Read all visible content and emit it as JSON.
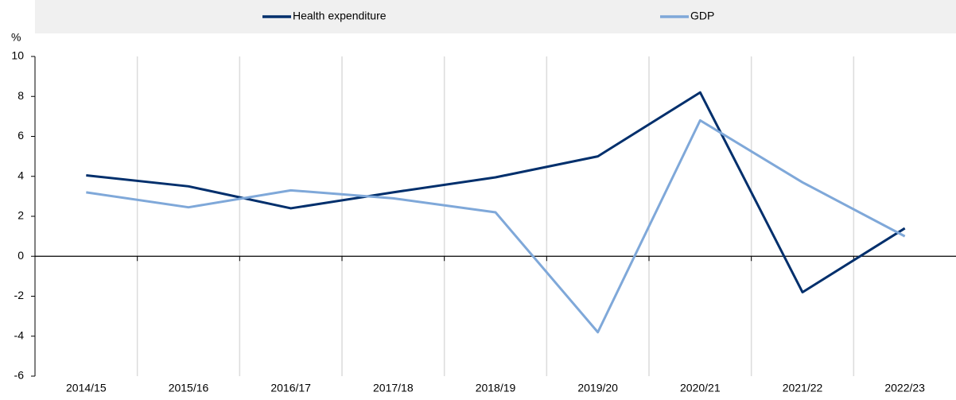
{
  "chart_data": {
    "type": "line",
    "y_label": "%",
    "categories": [
      "2014/15",
      "2015/16",
      "2016/17",
      "2017/18",
      "2018/19",
      "2019/20",
      "2020/21",
      "2021/22",
      "2022/23"
    ],
    "series": [
      {
        "name": "Health expenditure",
        "color": "#002f6c",
        "values": [
          4.05,
          3.5,
          2.4,
          3.2,
          3.95,
          5.0,
          8.2,
          -1.8,
          1.4
        ]
      },
      {
        "name": "GDP",
        "color": "#7fa8d9",
        "values": [
          3.2,
          2.45,
          3.3,
          2.9,
          2.2,
          -3.8,
          6.8,
          3.7,
          1.0
        ]
      }
    ],
    "ylim": [
      -6,
      10
    ],
    "yticks": [
      -6,
      -4,
      -2,
      0,
      2,
      4,
      6,
      8,
      10
    ],
    "vertical_grid": true,
    "legend": "top"
  }
}
